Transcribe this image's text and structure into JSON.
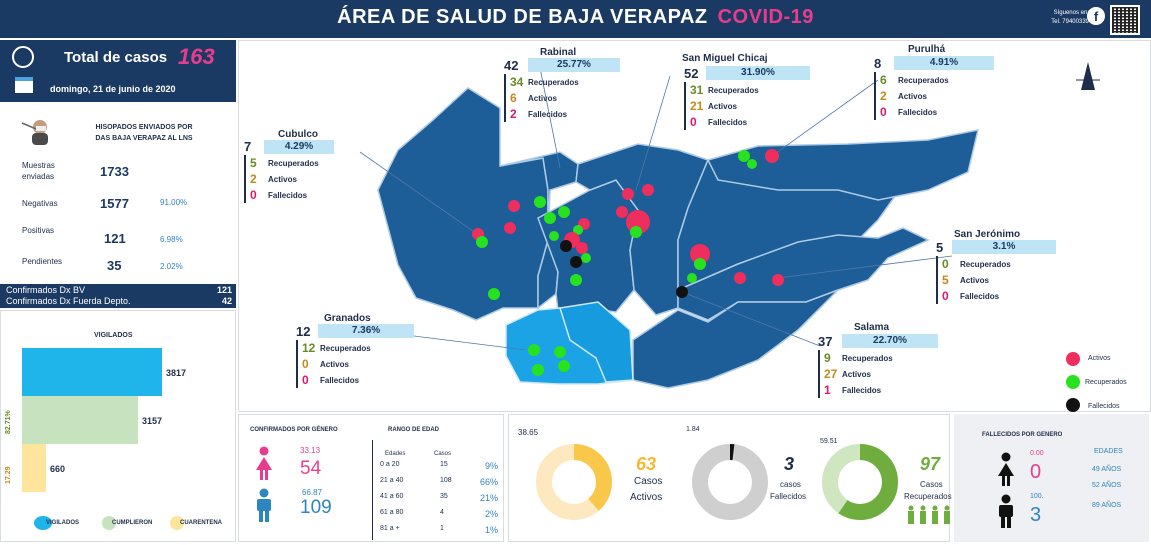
{
  "header": {
    "title": "ÁREA DE SALUD DE BAJA VERAPAZ",
    "subtitle": "COVID-19",
    "follow_line1": "Síguenos en:",
    "follow_line2": "Tel. 79400339",
    "facebook_glyph": "f"
  },
  "summary": {
    "total_label": "Total de casos",
    "total_value": "163",
    "date": "domingo, 21 de junio de 2020"
  },
  "swabs": {
    "title_line1": "HISOPADOS ENVIADOS POR",
    "title_line2": "DAS BAJA VERAPAZ AL LNS",
    "rows": [
      {
        "label": "Muestras enviadas",
        "value": "1733",
        "pct": ""
      },
      {
        "label": "Negativas",
        "value": "1577",
        "pct": "91.00%"
      },
      {
        "label": "Positivas",
        "value": "121",
        "pct": "6.98%"
      },
      {
        "label": "Pendientes",
        "value": "35",
        "pct": "2.02%"
      }
    ]
  },
  "confirmed": {
    "row1_label": "Confirmados Dx BV",
    "row1_value": "121",
    "row2_label": "Confirmados Dx Fuerda Depto.",
    "row2_value": "42"
  },
  "vigilados": {
    "title": "VIGILADOS",
    "bars": [
      {
        "name": "VIGILADOS",
        "value": 3817,
        "color": "#1fb4ea"
      },
      {
        "name": "CUMPLIERON",
        "value": 3157,
        "color": "#c7e2bf"
      },
      {
        "name": "CUARENTENA",
        "value": 660,
        "color": "#fde59b"
      }
    ],
    "pct_cumplieron": "82.71%",
    "pct_cuarentena": "17.29",
    "legend": [
      "VIGILADOS",
      "CUMPLIERON",
      "CUARENTENA"
    ]
  },
  "municipalities": {
    "rabinal": {
      "name": "Rabinal",
      "pct": "25.77%",
      "total": "42",
      "rec": "34",
      "act": "6",
      "dead": "2"
    },
    "chicaj": {
      "name": "San Miguel Chicaj",
      "pct": "31.90%",
      "total": "52",
      "rec": "31",
      "act": "21",
      "dead": "0"
    },
    "purulha": {
      "name": "Purulhá",
      "pct": "4.91%",
      "total": "8",
      "rec": "6",
      "act": "2",
      "dead": "0"
    },
    "cubulco": {
      "name": "Cubulco",
      "pct": "4.29%",
      "total": "7",
      "rec": "5",
      "act": "2",
      "dead": "0"
    },
    "jeronimo": {
      "name": "San Jerónimo",
      "pct": "3.1%",
      "total": "5",
      "rec": "0",
      "act": "5",
      "dead": "0"
    },
    "granados": {
      "name": "Granados",
      "pct": "7.36%",
      "total": "12",
      "rec": "12",
      "act": "0",
      "dead": "0"
    },
    "salama": {
      "name": "Salama",
      "pct": "22.70%",
      "total": "37",
      "rec": "9",
      "act": "27",
      "dead": "1"
    },
    "labels": {
      "rec": "Recuperados",
      "act": "Activos",
      "dead": "Fallecidos"
    }
  },
  "map_legend": {
    "active": "Activos",
    "recovered": "Recuperados",
    "deceased": "Fallecidos",
    "colors": {
      "active": "#ee2e5c",
      "recovered": "#27e21f",
      "deceased": "#111111"
    }
  },
  "gender": {
    "title": "CONFIRMADOS POR GÉNERO",
    "female_pct": "33.13",
    "female_count": "54",
    "male_pct": "66.87",
    "male_count": "109"
  },
  "age_range": {
    "title": "RANGO DE EDAD",
    "col_edades": "Edades",
    "col_casos": "Casos",
    "rows": [
      {
        "range": "0 a 20",
        "cases": "15",
        "pct": "9%"
      },
      {
        "range": "21 a 40",
        "cases": "108",
        "pct": "66%"
      },
      {
        "range": "41 a 60",
        "cases": "35",
        "pct": "21%"
      },
      {
        "range": "61 a 80",
        "cases": "4",
        "pct": "2%"
      },
      {
        "range": "81 a +",
        "cases": "1",
        "pct": "1%"
      }
    ]
  },
  "donuts": {
    "active": {
      "pct_label": "38.65",
      "count": "63",
      "text1": "Casos",
      "text2": "Activos",
      "fraction": 0.3865,
      "color": "#f9c84a",
      "track": "#fde8bf"
    },
    "deceased": {
      "pct_label": "1.84",
      "count": "3",
      "text1": "casos",
      "text2": "Fallecidos",
      "fraction": 0.0184,
      "color": "#111111",
      "track": "#cfcfcf"
    },
    "recovered": {
      "pct_label": "59.51",
      "count": "97",
      "text1": "Casos",
      "text2": "Recuperados",
      "fraction": 0.5951,
      "color": "#6fae3e",
      "track": "#cfe6c0"
    }
  },
  "deaths_gender": {
    "title": "FALLECIDOS POR GENERO",
    "female_pct": "0.00",
    "female_count": "0",
    "male_pct": "100.",
    "male_count": "3",
    "ages_title": "EDADES",
    "ages": [
      "49 AÑOS",
      "52 AÑOS",
      "89 AÑOS"
    ]
  }
}
